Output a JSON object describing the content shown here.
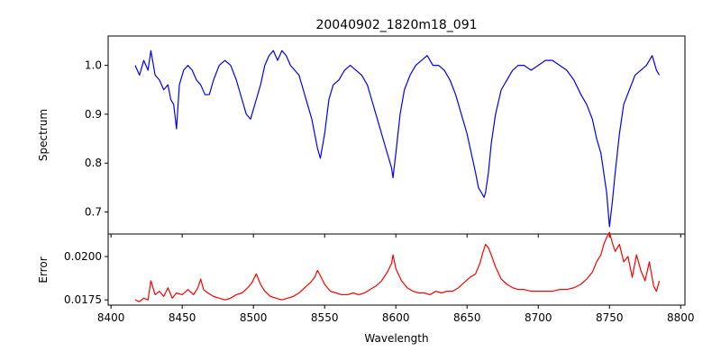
{
  "chart_data": [
    {
      "type": "line",
      "title": "20040902_1820m18_091",
      "xlabel": "",
      "ylabel": "Spectrum",
      "xlim": [
        8398,
        8803
      ],
      "ylim": [
        0.655,
        1.06
      ],
      "xticks": [
        8400,
        8450,
        8500,
        8550,
        8600,
        8650,
        8700,
        8750,
        8800
      ],
      "xtick_labels_shown": false,
      "yticks": [
        0.7,
        0.8,
        0.9,
        1.0
      ],
      "ytick_labels": [
        "0.7",
        "0.8",
        "0.9",
        "1.0"
      ],
      "grid": false,
      "series": [
        {
          "color": "#0000ff",
          "x": [
            8417,
            8420,
            8423,
            8426,
            8428,
            8431,
            8434,
            8437,
            8440,
            8442,
            8444,
            8446,
            8448,
            8451,
            8454,
            8457,
            8460,
            8463,
            8466,
            8469,
            8472,
            8476,
            8480,
            8484,
            8488,
            8492,
            8495,
            8498,
            8500,
            8502,
            8505,
            8508,
            8511,
            8514,
            8517,
            8520,
            8523,
            8526,
            8529,
            8532,
            8535,
            8538,
            8541,
            8543,
            8545,
            8547,
            8550,
            8553,
            8556,
            8560,
            8564,
            8568,
            8572,
            8576,
            8580,
            8583,
            8586,
            8589,
            8592,
            8595,
            8597,
            8598,
            8600,
            8603,
            8606,
            8610,
            8614,
            8618,
            8622,
            8626,
            8630,
            8634,
            8638,
            8642,
            8646,
            8650,
            8653,
            8656,
            8658,
            8660,
            8662,
            8663,
            8665,
            8667,
            8670,
            8674,
            8678,
            8682,
            8686,
            8690,
            8695,
            8700,
            8705,
            8710,
            8715,
            8720,
            8725,
            8730,
            8734,
            8738,
            8741,
            8744,
            8746,
            8748,
            8750,
            8752,
            8754,
            8757,
            8760,
            8764,
            8768,
            8772,
            8776,
            8780,
            8783,
            8785
          ],
          "y": [
            1.0,
            0.98,
            1.01,
            0.99,
            1.03,
            0.98,
            0.97,
            0.95,
            0.96,
            0.93,
            0.92,
            0.87,
            0.96,
            0.99,
            1.0,
            0.99,
            0.97,
            0.96,
            0.94,
            0.94,
            0.97,
            1.0,
            1.01,
            1.0,
            0.97,
            0.93,
            0.9,
            0.89,
            0.91,
            0.93,
            0.96,
            1.0,
            1.02,
            1.03,
            1.01,
            1.03,
            1.02,
            1.0,
            0.99,
            0.98,
            0.95,
            0.92,
            0.89,
            0.86,
            0.83,
            0.81,
            0.86,
            0.93,
            0.96,
            0.97,
            0.99,
            1.0,
            0.99,
            0.98,
            0.96,
            0.93,
            0.9,
            0.87,
            0.84,
            0.81,
            0.79,
            0.77,
            0.82,
            0.9,
            0.95,
            0.98,
            1.0,
            1.01,
            1.02,
            1.0,
            1.0,
            0.99,
            0.97,
            0.94,
            0.9,
            0.86,
            0.82,
            0.78,
            0.75,
            0.74,
            0.73,
            0.74,
            0.78,
            0.84,
            0.9,
            0.95,
            0.97,
            0.99,
            1.0,
            1.0,
            0.99,
            1.0,
            1.01,
            1.01,
            1.0,
            0.99,
            0.97,
            0.94,
            0.92,
            0.89,
            0.85,
            0.82,
            0.78,
            0.74,
            0.67,
            0.72,
            0.78,
            0.86,
            0.92,
            0.95,
            0.98,
            0.99,
            1.0,
            1.02,
            0.99,
            0.98
          ]
        }
      ]
    },
    {
      "type": "line",
      "title": "",
      "xlabel": "Wavelength",
      "ylabel": "Error",
      "xlim": [
        8398,
        8803
      ],
      "ylim": [
        0.0172,
        0.0213
      ],
      "xticks": [
        8400,
        8450,
        8500,
        8550,
        8600,
        8650,
        8700,
        8750,
        8800
      ],
      "xtick_labels": [
        "8400",
        "8450",
        "8500",
        "8550",
        "8600",
        "8650",
        "8700",
        "8750",
        "8800"
      ],
      "yticks": [
        0.0175,
        0.02
      ],
      "ytick_labels": [
        "0.0175",
        "0.0200"
      ],
      "grid": false,
      "series": [
        {
          "color": "#ff0000",
          "x": [
            8417,
            8420,
            8423,
            8426,
            8428,
            8431,
            8434,
            8437,
            8440,
            8443,
            8446,
            8450,
            8454,
            8458,
            8461,
            8463,
            8465,
            8468,
            8472,
            8476,
            8480,
            8484,
            8488,
            8492,
            8496,
            8499,
            8502,
            8505,
            8508,
            8512,
            8516,
            8520,
            8524,
            8528,
            8532,
            8536,
            8540,
            8543,
            8545,
            8547,
            8550,
            8554,
            8558,
            8562,
            8566,
            8570,
            8574,
            8578,
            8582,
            8586,
            8590,
            8594,
            8597,
            8598,
            8600,
            8604,
            8608,
            8612,
            8616,
            8620,
            8624,
            8628,
            8632,
            8636,
            8640,
            8644,
            8648,
            8652,
            8656,
            8659,
            8661,
            8663,
            8665,
            8667,
            8670,
            8674,
            8678,
            8682,
            8686,
            8690,
            8695,
            8700,
            8705,
            8710,
            8715,
            8720,
            8725,
            8730,
            8734,
            8738,
            8741,
            8744,
            8746,
            8748,
            8750,
            8752,
            8754,
            8757,
            8760,
            8763,
            8766,
            8769,
            8772,
            8775,
            8778,
            8781,
            8783,
            8785
          ],
          "y": [
            0.0175,
            0.0174,
            0.0176,
            0.0175,
            0.0186,
            0.0178,
            0.018,
            0.0177,
            0.0182,
            0.0176,
            0.0179,
            0.0178,
            0.0181,
            0.0178,
            0.0182,
            0.0187,
            0.0181,
            0.0179,
            0.0177,
            0.0176,
            0.0175,
            0.0176,
            0.0178,
            0.0179,
            0.0182,
            0.0185,
            0.019,
            0.0184,
            0.018,
            0.0177,
            0.0176,
            0.0175,
            0.0176,
            0.0177,
            0.0179,
            0.0182,
            0.0185,
            0.0188,
            0.0192,
            0.0189,
            0.0184,
            0.018,
            0.0179,
            0.0178,
            0.0178,
            0.0179,
            0.0178,
            0.0179,
            0.0181,
            0.0183,
            0.0186,
            0.0191,
            0.0196,
            0.0201,
            0.0193,
            0.0186,
            0.0182,
            0.018,
            0.0179,
            0.0179,
            0.0178,
            0.018,
            0.0179,
            0.018,
            0.018,
            0.0182,
            0.0185,
            0.0188,
            0.019,
            0.0196,
            0.0202,
            0.0207,
            0.0205,
            0.0201,
            0.0194,
            0.0187,
            0.0184,
            0.0182,
            0.0181,
            0.0181,
            0.018,
            0.018,
            0.018,
            0.018,
            0.0181,
            0.0181,
            0.0182,
            0.0184,
            0.0187,
            0.0191,
            0.0197,
            0.0201,
            0.0207,
            0.0211,
            0.0214,
            0.0208,
            0.0203,
            0.0207,
            0.0197,
            0.02,
            0.0188,
            0.0201,
            0.0192,
            0.0186,
            0.0197,
            0.0183,
            0.018,
            0.0186
          ]
        }
      ]
    }
  ]
}
